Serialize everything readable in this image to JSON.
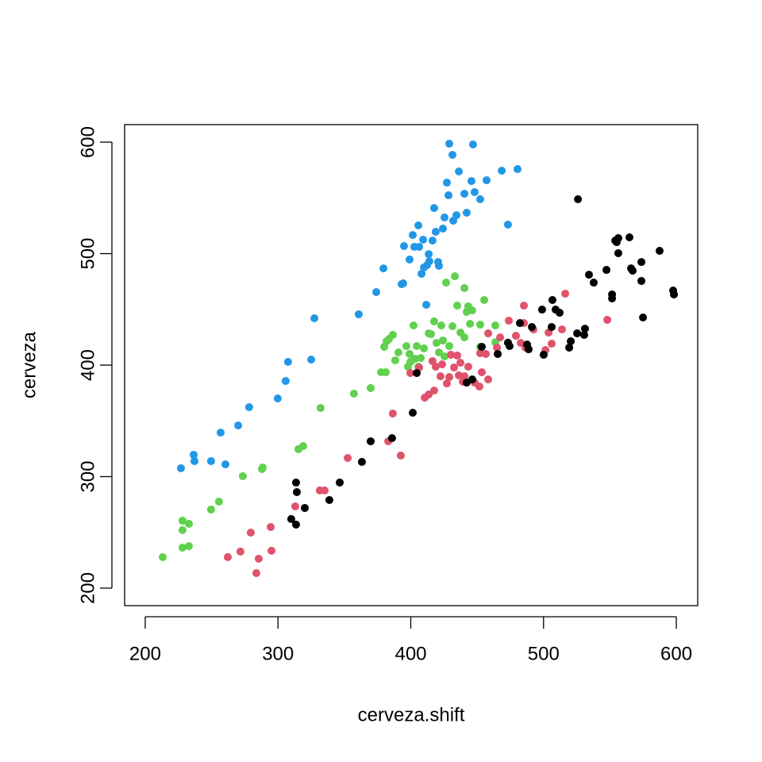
{
  "chart_data": {
    "type": "scatter",
    "xlabel": "cerveza.shift",
    "ylabel": "cerveza",
    "xlim": [
      184.5,
      616.1
    ],
    "ylim": [
      184.3,
      615.7
    ],
    "xticks": [
      200,
      300,
      400,
      500,
      600
    ],
    "yticks": [
      200,
      300,
      400,
      500,
      600
    ],
    "series": [
      {
        "color": "#2297E6",
        "x": [
          226.9,
          237.1,
          236.5,
          249.6,
          260.4,
          256.8,
          270.0,
          278.3,
          299.8,
          305.8,
          307.6,
          325.0,
          327.4,
          360.8,
          374.0,
          379.4,
          394.3,
          394.9,
          399.1,
          401.5,
          402.7,
          405.7,
          406.3,
          408.1,
          409.3,
          409.9,
          413.5,
          414.0,
          416.4,
          418.8,
          420.6,
          421.2,
          424.2,
          425.4,
          428.4,
          434.4,
          440.4,
          432.0,
          427.2,
          417.6,
          436.2,
          442.1,
          429.0,
          431.4,
          446.9,
          445.7,
          448.1,
          452.3,
          457.1,
          468.5,
          480.4,
          473.2,
          411.7,
          393.1,
          412.3
        ],
        "values": [
          307.5,
          313.9,
          319.6,
          313.9,
          311.0,
          339.5,
          345.9,
          362.3,
          370.1,
          385.8,
          402.9,
          405.0,
          442.0,
          445.6,
          465.5,
          486.8,
          473.3,
          506.8,
          494.7,
          516.7,
          506.1,
          525.3,
          506.1,
          481.9,
          512.5,
          487.6,
          499.6,
          493.2,
          511.7,
          519.6,
          492.5,
          489.0,
          522.4,
          532.4,
          552.3,
          534.5,
          553.7,
          529.5,
          563.7,
          540.9,
          573.7,
          536.7,
          598.6,
          588.6,
          597.9,
          565.1,
          555.2,
          548.8,
          565.8,
          574.4,
          575.8,
          526.0,
          454.1,
          472.6,
          489.7
        ]
      },
      {
        "color": "#61D04F",
        "x": [
          213.2,
          228.1,
          228.1,
          228.1,
          232.9,
          232.9,
          249.6,
          255.6,
          273.5,
          287.9,
          288.5,
          315.4,
          319.0,
          332.1,
          357.2,
          369.8,
          377.6,
          381.2,
          380.0,
          381.8,
          383.6,
          386.5,
          388.3,
          390.7,
          396.7,
          397.9,
          399.1,
          399.7,
          402.1,
          403.3,
          404.5,
          405.7,
          407.5,
          409.9,
          413.5,
          415.2,
          417.6,
          419.4,
          421.2,
          423.0,
          424.2,
          425.4,
          426.6,
          429.0,
          431.4,
          433.2,
          435.0,
          437.4,
          440.4,
          442.1,
          443.3,
          444.6,
          446.3,
          452.3,
          452.3,
          455.3,
          440.4,
          463.7,
          463.7
        ],
        "values": [
          227.8,
          260.5,
          252.0,
          236.3,
          257.7,
          237.7,
          270.5,
          277.6,
          300.4,
          306.8,
          308.2,
          324.6,
          327.4,
          361.6,
          374.4,
          379.4,
          393.6,
          393.6,
          416.4,
          421.4,
          423.5,
          427.1,
          404.3,
          411.4,
          417.1,
          398.6,
          410.0,
          402.9,
          435.6,
          405.7,
          417.1,
          398.6,
          406.4,
          415.0,
          428.5,
          427.8,
          439.2,
          419.9,
          411.4,
          435.6,
          422.1,
          407.8,
          474.0,
          417.1,
          434.9,
          479.7,
          453.4,
          429.2,
          469.1,
          447.7,
          452.7,
          437.0,
          449.1,
          416.4,
          436.3,
          458.4,
          424.9,
          420.6,
          435.6
        ]
      },
      {
        "color": "#DF536B",
        "x": [
          262.2,
          271.7,
          279.5,
          285.5,
          283.7,
          294.5,
          295.1,
          313.0,
          331.5,
          335.1,
          352.5,
          383.0,
          386.5,
          392.5,
          399.7,
          406.3,
          410.5,
          413.5,
          417.6,
          416.4,
          418.8,
          422.4,
          423.6,
          427.2,
          429.0,
          430.2,
          432.6,
          435.0,
          436.2,
          437.4,
          439.2,
          440.4,
          443.3,
          448.1,
          451.7,
          453.5,
          456.5,
          458.3,
          458.3,
          464.9,
          467.3,
          473.8,
          479.2,
          482.8,
          485.2,
          486.4,
          492.4,
          501.4,
          503.8,
          506.1,
          513.9,
          516.3,
          548.0,
          452.3,
          485.2
        ],
        "values": [
          227.8,
          232.8,
          249.8,
          226.4,
          213.5,
          254.8,
          233.5,
          273.3,
          287.6,
          287.6,
          316.7,
          331.7,
          356.6,
          318.9,
          392.9,
          397.9,
          370.8,
          373.7,
          377.2,
          403.6,
          398.6,
          390.0,
          400.7,
          383.6,
          389.3,
          409.3,
          397.9,
          408.6,
          390.8,
          402.1,
          385.1,
          390.0,
          398.6,
          384.3,
          380.8,
          393.6,
          410.0,
          387.2,
          428.5,
          415.7,
          424.9,
          439.9,
          426.3,
          419.9,
          453.4,
          415.7,
          432.0,
          413.5,
          429.2,
          419.2,
          432.0,
          464.1,
          440.6,
          410.7,
          437.7
        ]
      },
      {
        "color": "#000000",
        "x": [
          310.0,
          313.6,
          314.2,
          320.2,
          313.6,
          338.7,
          346.5,
          363.2,
          369.8,
          385.9,
          401.5,
          404.5,
          442.1,
          446.3,
          453.5,
          465.5,
          473.2,
          482.2,
          487.6,
          488.8,
          491.2,
          498.9,
          500.1,
          506.1,
          506.7,
          512.1,
          519.3,
          520.5,
          525.3,
          525.9,
          530.6,
          531.2,
          534.2,
          537.8,
          547.4,
          551.6,
          551.6,
          554.0,
          555.1,
          556.3,
          556.3,
          564.7,
          565.9,
          567.1,
          573.7,
          573.7,
          574.9,
          587.4,
          597.6,
          598.2,
          474.4,
          509.1
        ],
        "values": [
          262.0,
          257.0,
          286.1,
          271.9,
          294.7,
          279.0,
          294.7,
          313.2,
          331.7,
          334.5,
          357.3,
          392.9,
          384.3,
          387.2,
          416.4,
          410.0,
          420.1,
          437.7,
          418.5,
          414.2,
          434.2,
          449.8,
          409.3,
          434.2,
          458.4,
          447.0,
          415.7,
          421.4,
          428.5,
          548.8,
          427.1,
          432.7,
          481.1,
          474.0,
          485.4,
          463.4,
          459.8,
          511.7,
          510.3,
          513.9,
          500.4,
          514.6,
          486.8,
          484.7,
          492.5,
          475.5,
          442.7,
          502.5,
          466.9,
          463.4,
          417.1,
          449.8
        ]
      }
    ]
  }
}
